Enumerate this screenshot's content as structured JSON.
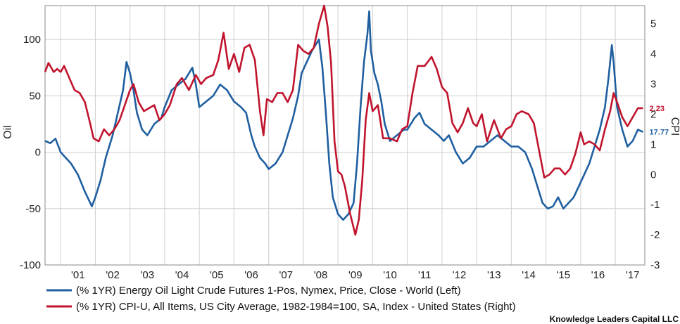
{
  "chart_data": {
    "type": "line",
    "credit": "Knowledge Leaders Capital LLC",
    "left_axis": {
      "label": "Oil",
      "ylim": [
        -100,
        130
      ],
      "ticks": [
        -100,
        -50,
        0,
        50,
        100
      ]
    },
    "right_axis": {
      "label": "CPI",
      "ylim": [
        -3,
        5.6
      ],
      "ticks": [
        -3,
        -2,
        -1,
        0,
        1,
        2,
        3,
        4,
        5
      ]
    },
    "x_axis": {
      "range": [
        2000.55,
        2017.85
      ],
      "tick_labels": [
        "'01",
        "'02",
        "'03",
        "'04",
        "'05",
        "'06",
        "'07",
        "'08",
        "'09",
        "'10",
        "'11",
        "'12",
        "'13",
        "'14",
        "'15",
        "'16",
        "'17"
      ]
    },
    "grid": true,
    "series": [
      {
        "name": "(% 1YR) Energy Oil Light Crude Futures 1-Pos, Nymex, Price, Close - World  (Left)",
        "axis": "left",
        "color": "#1f5fa0",
        "end_label": "17.77",
        "points": [
          [
            2000.55,
            10
          ],
          [
            2000.7,
            8
          ],
          [
            2000.85,
            12
          ],
          [
            2001.0,
            0
          ],
          [
            2001.15,
            -5
          ],
          [
            2001.3,
            -10
          ],
          [
            2001.5,
            -20
          ],
          [
            2001.7,
            -35
          ],
          [
            2001.9,
            -48
          ],
          [
            2002.0,
            -40
          ],
          [
            2002.15,
            -25
          ],
          [
            2002.3,
            -5
          ],
          [
            2002.5,
            15
          ],
          [
            2002.65,
            35
          ],
          [
            2002.8,
            55
          ],
          [
            2002.9,
            80
          ],
          [
            2003.0,
            70
          ],
          [
            2003.1,
            55
          ],
          [
            2003.2,
            35
          ],
          [
            2003.35,
            20
          ],
          [
            2003.5,
            15
          ],
          [
            2003.7,
            25
          ],
          [
            2003.9,
            30
          ],
          [
            2004.0,
            40
          ],
          [
            2004.2,
            55
          ],
          [
            2004.4,
            60
          ],
          [
            2004.6,
            65
          ],
          [
            2004.8,
            75
          ],
          [
            2004.9,
            60
          ],
          [
            2005.0,
            40
          ],
          [
            2005.2,
            45
          ],
          [
            2005.4,
            50
          ],
          [
            2005.6,
            60
          ],
          [
            2005.8,
            55
          ],
          [
            2006.0,
            45
          ],
          [
            2006.2,
            40
          ],
          [
            2006.35,
            35
          ],
          [
            2006.5,
            15
          ],
          [
            2006.6,
            5
          ],
          [
            2006.75,
            -5
          ],
          [
            2006.9,
            -10
          ],
          [
            2007.0,
            -15
          ],
          [
            2007.2,
            -10
          ],
          [
            2007.4,
            0
          ],
          [
            2007.5,
            10
          ],
          [
            2007.7,
            30
          ],
          [
            2007.85,
            50
          ],
          [
            2007.95,
            70
          ],
          [
            2008.1,
            80
          ],
          [
            2008.25,
            90
          ],
          [
            2008.45,
            100
          ],
          [
            2008.55,
            75
          ],
          [
            2008.65,
            35
          ],
          [
            2008.75,
            -10
          ],
          [
            2008.85,
            -40
          ],
          [
            2009.0,
            -55
          ],
          [
            2009.15,
            -60
          ],
          [
            2009.3,
            -55
          ],
          [
            2009.45,
            -45
          ],
          [
            2009.55,
            -10
          ],
          [
            2009.65,
            40
          ],
          [
            2009.75,
            80
          ],
          [
            2009.85,
            105
          ],
          [
            2009.9,
            125
          ],
          [
            2009.95,
            90
          ],
          [
            2010.05,
            70
          ],
          [
            2010.15,
            60
          ],
          [
            2010.25,
            45
          ],
          [
            2010.35,
            25
          ],
          [
            2010.5,
            10
          ],
          [
            2010.7,
            15
          ],
          [
            2010.9,
            20
          ],
          [
            2011.0,
            20
          ],
          [
            2011.2,
            30
          ],
          [
            2011.35,
            35
          ],
          [
            2011.5,
            25
          ],
          [
            2011.7,
            20
          ],
          [
            2011.9,
            15
          ],
          [
            2012.05,
            10
          ],
          [
            2012.2,
            15
          ],
          [
            2012.4,
            0
          ],
          [
            2012.6,
            -10
          ],
          [
            2012.8,
            -5
          ],
          [
            2013.0,
            5
          ],
          [
            2013.2,
            5
          ],
          [
            2013.4,
            10
          ],
          [
            2013.6,
            15
          ],
          [
            2013.8,
            10
          ],
          [
            2014.0,
            5
          ],
          [
            2014.2,
            5
          ],
          [
            2014.4,
            0
          ],
          [
            2014.6,
            -15
          ],
          [
            2014.75,
            -30
          ],
          [
            2014.9,
            -45
          ],
          [
            2015.05,
            -50
          ],
          [
            2015.2,
            -48
          ],
          [
            2015.35,
            -40
          ],
          [
            2015.5,
            -50
          ],
          [
            2015.65,
            -45
          ],
          [
            2015.8,
            -40
          ],
          [
            2015.95,
            -30
          ],
          [
            2016.1,
            -20
          ],
          [
            2016.25,
            -10
          ],
          [
            2016.4,
            5
          ],
          [
            2016.55,
            20
          ],
          [
            2016.7,
            40
          ],
          [
            2016.8,
            65
          ],
          [
            2016.9,
            95
          ],
          [
            2016.95,
            80
          ],
          [
            2017.05,
            40
          ],
          [
            2017.2,
            20
          ],
          [
            2017.35,
            5
          ],
          [
            2017.5,
            10
          ],
          [
            2017.65,
            20
          ],
          [
            2017.8,
            18
          ]
        ]
      },
      {
        "name": "(% 1YR) CPI-U, All Items, US City Average, 1982-1984=100, SA, Index - United States  (Right)",
        "axis": "right",
        "color": "#c0142d",
        "end_label": "2.23",
        "points": [
          [
            2000.55,
            3.4
          ],
          [
            2000.65,
            3.7
          ],
          [
            2000.8,
            3.4
          ],
          [
            2000.9,
            3.5
          ],
          [
            2001.0,
            3.4
          ],
          [
            2001.1,
            3.6
          ],
          [
            2001.25,
            3.2
          ],
          [
            2001.4,
            2.8
          ],
          [
            2001.55,
            2.7
          ],
          [
            2001.7,
            2.4
          ],
          [
            2001.85,
            1.7
          ],
          [
            2001.95,
            1.2
          ],
          [
            2002.1,
            1.1
          ],
          [
            2002.25,
            1.5
          ],
          [
            2002.4,
            1.3
          ],
          [
            2002.55,
            1.5
          ],
          [
            2002.7,
            1.8
          ],
          [
            2002.85,
            2.3
          ],
          [
            2003.0,
            2.8
          ],
          [
            2003.1,
            3.0
          ],
          [
            2003.25,
            2.4
          ],
          [
            2003.4,
            2.1
          ],
          [
            2003.55,
            2.2
          ],
          [
            2003.7,
            2.3
          ],
          [
            2003.85,
            1.8
          ],
          [
            2004.0,
            2.0
          ],
          [
            2004.15,
            2.3
          ],
          [
            2004.35,
            3.0
          ],
          [
            2004.5,
            3.2
          ],
          [
            2004.7,
            2.8
          ],
          [
            2004.9,
            3.3
          ],
          [
            2005.05,
            3.0
          ],
          [
            2005.2,
            3.2
          ],
          [
            2005.4,
            3.3
          ],
          [
            2005.55,
            3.8
          ],
          [
            2005.7,
            4.7
          ],
          [
            2005.85,
            3.5
          ],
          [
            2006.0,
            4.0
          ],
          [
            2006.15,
            3.4
          ],
          [
            2006.3,
            4.2
          ],
          [
            2006.45,
            4.3
          ],
          [
            2006.6,
            3.8
          ],
          [
            2006.75,
            2.1
          ],
          [
            2006.85,
            1.3
          ],
          [
            2006.95,
            2.5
          ],
          [
            2007.1,
            2.4
          ],
          [
            2007.25,
            2.7
          ],
          [
            2007.4,
            2.7
          ],
          [
            2007.55,
            2.4
          ],
          [
            2007.7,
            2.8
          ],
          [
            2007.85,
            4.3
          ],
          [
            2008.0,
            4.1
          ],
          [
            2008.15,
            4.0
          ],
          [
            2008.3,
            4.2
          ],
          [
            2008.45,
            5.0
          ],
          [
            2008.6,
            5.6
          ],
          [
            2008.7,
            4.9
          ],
          [
            2008.8,
            3.7
          ],
          [
            2008.9,
            1.1
          ],
          [
            2009.0,
            0.1
          ],
          [
            2009.1,
            0.0
          ],
          [
            2009.2,
            -0.4
          ],
          [
            2009.35,
            -1.3
          ],
          [
            2009.5,
            -2.0
          ],
          [
            2009.6,
            -1.5
          ],
          [
            2009.7,
            -0.2
          ],
          [
            2009.8,
            1.8
          ],
          [
            2009.9,
            2.7
          ],
          [
            2010.0,
            2.1
          ],
          [
            2010.15,
            2.3
          ],
          [
            2010.3,
            1.2
          ],
          [
            2010.5,
            1.2
          ],
          [
            2010.7,
            1.1
          ],
          [
            2010.85,
            1.5
          ],
          [
            2011.0,
            1.6
          ],
          [
            2011.15,
            2.7
          ],
          [
            2011.3,
            3.6
          ],
          [
            2011.5,
            3.6
          ],
          [
            2011.7,
            3.9
          ],
          [
            2011.85,
            3.5
          ],
          [
            2012.0,
            2.9
          ],
          [
            2012.15,
            2.7
          ],
          [
            2012.3,
            1.7
          ],
          [
            2012.45,
            1.4
          ],
          [
            2012.6,
            1.7
          ],
          [
            2012.75,
            2.2
          ],
          [
            2012.9,
            1.7
          ],
          [
            2013.0,
            1.6
          ],
          [
            2013.15,
            2.0
          ],
          [
            2013.3,
            1.1
          ],
          [
            2013.5,
            1.8
          ],
          [
            2013.7,
            1.2
          ],
          [
            2013.85,
            1.5
          ],
          [
            2014.0,
            1.6
          ],
          [
            2014.15,
            2.0
          ],
          [
            2014.3,
            2.1
          ],
          [
            2014.5,
            2.0
          ],
          [
            2014.65,
            1.7
          ],
          [
            2014.8,
            0.8
          ],
          [
            2014.95,
            -0.1
          ],
          [
            2015.1,
            0.0
          ],
          [
            2015.25,
            0.2
          ],
          [
            2015.4,
            0.2
          ],
          [
            2015.55,
            0.0
          ],
          [
            2015.7,
            0.2
          ],
          [
            2015.85,
            0.7
          ],
          [
            2016.0,
            1.4
          ],
          [
            2016.1,
            1.0
          ],
          [
            2016.25,
            1.1
          ],
          [
            2016.4,
            1.0
          ],
          [
            2016.55,
            0.8
          ],
          [
            2016.7,
            1.5
          ],
          [
            2016.85,
            2.1
          ],
          [
            2016.95,
            2.7
          ],
          [
            2017.05,
            2.4
          ],
          [
            2017.2,
            1.9
          ],
          [
            2017.35,
            1.6
          ],
          [
            2017.5,
            1.9
          ],
          [
            2017.65,
            2.2
          ],
          [
            2017.8,
            2.2
          ]
        ]
      }
    ]
  }
}
